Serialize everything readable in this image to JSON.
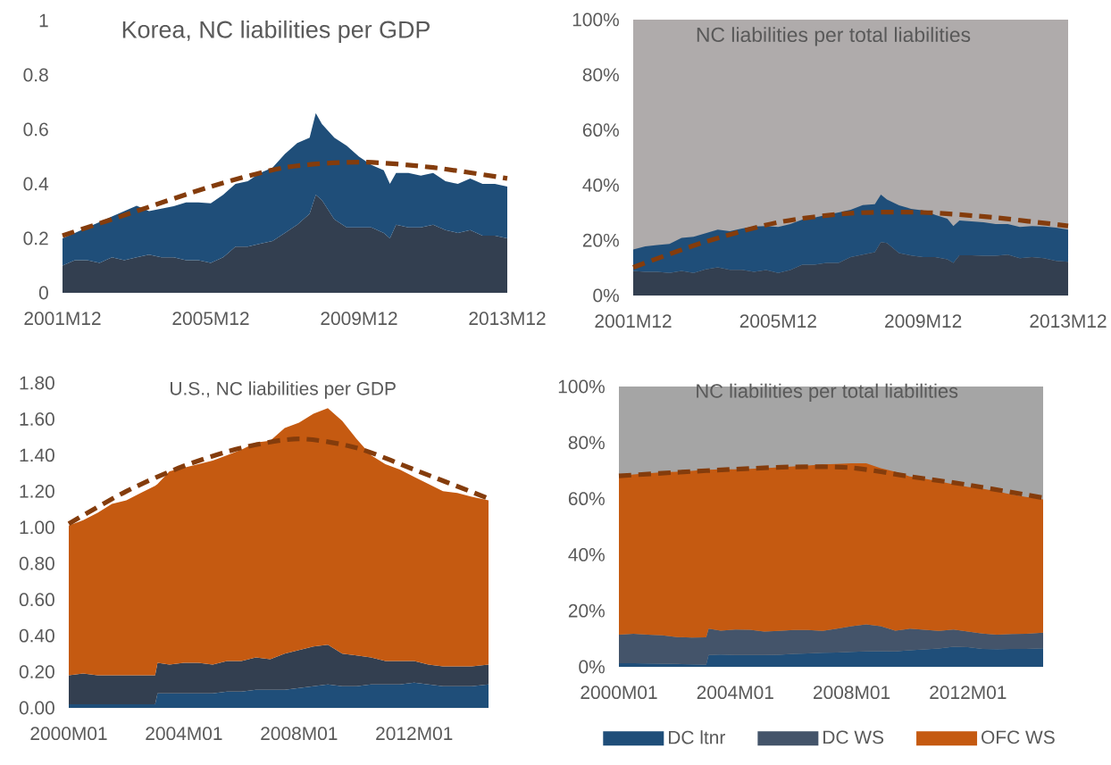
{
  "chart_data": [
    {
      "type": "area",
      "stacked": true,
      "title": "Korea, NC liabilities per GDP",
      "x": [
        "2001-12",
        "2002-04",
        "2002-08",
        "2002-12",
        "2003-04",
        "2003-08",
        "2003-12",
        "2004-04",
        "2004-08",
        "2004-12",
        "2005-04",
        "2005-08",
        "2005-12",
        "2006-04",
        "2006-08",
        "2006-12",
        "2007-04",
        "2007-08",
        "2007-12",
        "2008-04",
        "2008-08",
        "2008-10",
        "2008-12",
        "2009-04",
        "2009-08",
        "2009-12",
        "2010-04",
        "2010-08",
        "2010-10",
        "2010-12",
        "2011-04",
        "2011-08",
        "2011-12",
        "2012-04",
        "2012-08",
        "2012-12",
        "2013-04",
        "2013-08",
        "2013-12"
      ],
      "series": [
        {
          "color": "#333f50",
          "values": [
            0.1,
            0.12,
            0.12,
            0.11,
            0.13,
            0.12,
            0.13,
            0.14,
            0.13,
            0.13,
            0.12,
            0.12,
            0.11,
            0.13,
            0.17,
            0.17,
            0.18,
            0.19,
            0.22,
            0.25,
            0.29,
            0.36,
            0.34,
            0.27,
            0.24,
            0.24,
            0.24,
            0.22,
            0.2,
            0.25,
            0.24,
            0.24,
            0.25,
            0.23,
            0.22,
            0.23,
            0.21,
            0.21,
            0.2
          ]
        },
        {
          "color": "#1f4e79",
          "values": [
            0.1,
            0.1,
            0.12,
            0.15,
            0.15,
            0.18,
            0.19,
            0.16,
            0.179,
            0.188,
            0.212,
            0.212,
            0.219,
            0.23,
            0.23,
            0.24,
            0.26,
            0.27,
            0.29,
            0.3,
            0.28,
            0.3,
            0.28,
            0.3,
            0.3,
            0.26,
            0.23,
            0.23,
            0.2,
            0.19,
            0.2,
            0.19,
            0.19,
            0.18,
            0.18,
            0.19,
            0.19,
            0.19,
            0.19
          ]
        },
        {
          "type": "line",
          "color": "#843c0c",
          "line_style": "dashed",
          "x": [
            "2001-12",
            "2003-12",
            "2005-12",
            "2007-12",
            "2009-12",
            "2011-12",
            "2013-12"
          ],
          "values": [
            0.21,
            0.3,
            0.39,
            0.46,
            0.48,
            0.46,
            0.42
          ]
        }
      ],
      "xlim": [
        "2001-12",
        "2013-12"
      ],
      "xticks": [
        {
          "value": "2001-12",
          "label": "2001M12"
        },
        {
          "value": "2005-12",
          "label": "2005M12"
        },
        {
          "value": "2009-12",
          "label": "2009M12"
        },
        {
          "value": "2013-12",
          "label": "2013M12"
        }
      ],
      "ylim": [
        0,
        1
      ],
      "yticks": [
        0,
        0.2,
        0.4,
        0.6,
        0.8,
        1
      ]
    },
    {
      "type": "area",
      "stacked": true,
      "title": "NC liabilities per total liabilities",
      "x": [
        "2001-12",
        "2002-04",
        "2002-08",
        "2002-12",
        "2003-04",
        "2003-08",
        "2003-12",
        "2004-04",
        "2004-08",
        "2004-12",
        "2005-04",
        "2005-08",
        "2005-12",
        "2006-04",
        "2006-08",
        "2006-12",
        "2007-04",
        "2007-08",
        "2007-12",
        "2008-04",
        "2008-08",
        "2008-10",
        "2008-12",
        "2009-04",
        "2009-08",
        "2009-12",
        "2010-04",
        "2010-08",
        "2010-10",
        "2010-12",
        "2011-04",
        "2011-08",
        "2011-12",
        "2012-04",
        "2012-08",
        "2012-12",
        "2013-04",
        "2013-08",
        "2013-12"
      ],
      "series": [
        {
          "color": "#333f50",
          "values": [
            8.9,
            8.6,
            8.6,
            8.2,
            8.9,
            8.2,
            9.5,
            10.2,
            9.3,
            9.3,
            8.6,
            9.2,
            8.2,
            9.2,
            11.2,
            11.2,
            11.8,
            11.8,
            13.9,
            14.8,
            15.7,
            19.3,
            19.0,
            15.4,
            14.5,
            13.9,
            13.9,
            13.1,
            11.8,
            14.6,
            14.6,
            14.4,
            14.4,
            14.8,
            13.5,
            13.9,
            13.5,
            12.5,
            12.2
          ]
        },
        {
          "color": "#1f4e79",
          "values": [
            7.8,
            9.2,
            9.7,
            10.5,
            12.0,
            13.1,
            13.1,
            13.7,
            14.0,
            15.0,
            16.4,
            16.0,
            16.6,
            16.7,
            16.3,
            17.0,
            17.4,
            18.3,
            17.2,
            18.0,
            17.4,
            17.3,
            15.8,
            17.3,
            16.9,
            16.9,
            15.3,
            14.7,
            13.4,
            12.6,
            12.3,
            12.1,
            11.5,
            11.1,
            11.3,
            11.3,
            11.5,
            12.1,
            11.7
          ]
        },
        {
          "type": "line",
          "color": "#843c0c",
          "line_style": "dashed",
          "x": [
            "2001-12",
            "2003-12",
            "2005-12",
            "2007-12",
            "2009-12",
            "2011-12",
            "2013-12"
          ],
          "values": [
            10.2,
            19.5,
            26.5,
            29.8,
            30.1,
            28.2,
            25.2
          ]
        }
      ],
      "bands": [
        {
          "axis": "y",
          "from": 0,
          "to": 100,
          "color": "#afabab"
        }
      ],
      "xlim": [
        "2001-12",
        "2013-12"
      ],
      "xticks": [
        {
          "value": "2001-12",
          "label": "2001M12"
        },
        {
          "value": "2005-12",
          "label": "2005M12"
        },
        {
          "value": "2009-12",
          "label": "2009M12"
        },
        {
          "value": "2013-12",
          "label": "2013M12"
        }
      ],
      "ylim": [
        0,
        100
      ],
      "yticks": [
        {
          "value": 0,
          "label": "0%"
        },
        {
          "value": 20,
          "label": "20%"
        },
        {
          "value": 40,
          "label": "40%"
        },
        {
          "value": 60,
          "label": "60%"
        },
        {
          "value": 80,
          "label": "80%"
        },
        {
          "value": 100,
          "label": "100%"
        }
      ]
    },
    {
      "type": "area",
      "stacked": true,
      "title": "U.S., NC liabilities per GDP",
      "x": [
        "2000-01",
        "2000-07",
        "2001-01",
        "2001-07",
        "2002-01",
        "2002-07",
        "2003-01",
        "2003-02",
        "2003-07",
        "2004-01",
        "2004-07",
        "2005-01",
        "2005-07",
        "2006-01",
        "2006-07",
        "2007-01",
        "2007-07",
        "2008-01",
        "2008-07",
        "2009-01",
        "2009-07",
        "2010-01",
        "2010-07",
        "2011-01",
        "2011-07",
        "2012-01",
        "2012-07",
        "2013-01",
        "2013-07",
        "2014-01",
        "2014-08"
      ],
      "series": [
        {
          "color": "#1f4e79",
          "values": [
            0.02,
            0.02,
            0.02,
            0.02,
            0.02,
            0.02,
            0.02,
            0.08,
            0.08,
            0.08,
            0.08,
            0.08,
            0.09,
            0.09,
            0.1,
            0.1,
            0.1,
            0.11,
            0.12,
            0.13,
            0.12,
            0.12,
            0.13,
            0.13,
            0.13,
            0.14,
            0.13,
            0.12,
            0.12,
            0.12,
            0.13
          ]
        },
        {
          "color": "#333f50",
          "values": [
            0.16,
            0.17,
            0.16,
            0.16,
            0.16,
            0.16,
            0.16,
            0.17,
            0.16,
            0.17,
            0.17,
            0.16,
            0.17,
            0.17,
            0.18,
            0.17,
            0.2,
            0.21,
            0.22,
            0.22,
            0.18,
            0.17,
            0.15,
            0.13,
            0.13,
            0.12,
            0.11,
            0.11,
            0.11,
            0.11,
            0.11
          ]
        },
        {
          "color": "#c55a11",
          "values": [
            0.83,
            0.85,
            0.9,
            0.95,
            0.97,
            1.01,
            1.05,
            0.99,
            1.07,
            1.08,
            1.1,
            1.13,
            1.14,
            1.17,
            1.19,
            1.21,
            1.25,
            1.26,
            1.29,
            1.31,
            1.29,
            1.2,
            1.12,
            1.09,
            1.06,
            1.02,
            1.0,
            0.97,
            0.96,
            0.94,
            0.91
          ]
        },
        {
          "type": "line",
          "color": "#843c0c",
          "line_style": "dashed",
          "x": [
            "2000-01",
            "2002-01",
            "2004-01",
            "2006-01",
            "2008-01",
            "2010-01",
            "2012-01",
            "2014-08"
          ],
          "values": [
            1.02,
            1.2,
            1.34,
            1.44,
            1.49,
            1.44,
            1.32,
            1.16
          ]
        }
      ],
      "xlim": [
        "2000-01",
        "2014-08"
      ],
      "xticks": [
        {
          "value": "2000-01",
          "label": "2000M01"
        },
        {
          "value": "2004-01",
          "label": "2004M01"
        },
        {
          "value": "2008-01",
          "label": "2008M01"
        },
        {
          "value": "2012-01",
          "label": "2012M01"
        }
      ],
      "ylim": [
        0,
        1.8
      ],
      "yticks": [
        {
          "value": 0,
          "label": "0.00"
        },
        {
          "value": 0.2,
          "label": "0.20"
        },
        {
          "value": 0.4,
          "label": "0.40"
        },
        {
          "value": 0.6,
          "label": "0.60"
        },
        {
          "value": 0.8,
          "label": "0.80"
        },
        {
          "value": 1,
          "label": "1.00"
        },
        {
          "value": 1.2,
          "label": "1.20"
        },
        {
          "value": 1.4,
          "label": "1.40"
        },
        {
          "value": 1.6,
          "label": "1.60"
        },
        {
          "value": 1.8,
          "label": "1.80"
        }
      ]
    },
    {
      "type": "area",
      "stacked": true,
      "title": "NC liabilities per total liabilities",
      "legend": "bottom",
      "x": [
        "2000-01",
        "2000-07",
        "2001-01",
        "2001-07",
        "2002-01",
        "2002-07",
        "2003-01",
        "2003-02",
        "2003-07",
        "2004-01",
        "2004-07",
        "2005-01",
        "2005-07",
        "2006-01",
        "2006-07",
        "2007-01",
        "2007-07",
        "2008-01",
        "2008-07",
        "2009-01",
        "2009-07",
        "2010-01",
        "2010-07",
        "2011-01",
        "2011-07",
        "2012-01",
        "2012-07",
        "2013-01",
        "2013-07",
        "2014-01",
        "2014-08"
      ],
      "series": [
        {
          "name": "DC ltnr",
          "color": "#1f4e79",
          "values": [
            1.3,
            1.3,
            1.2,
            1.1,
            1.0,
            0.9,
            0.8,
            4.2,
            4.4,
            4.2,
            4.2,
            4.2,
            4.3,
            4.6,
            4.8,
            5.0,
            5.1,
            5.3,
            5.5,
            5.6,
            5.5,
            5.9,
            6.2,
            6.5,
            7.2,
            7.0,
            6.4,
            6.3,
            6.4,
            6.4,
            6.6
          ]
        },
        {
          "name": "DC WS",
          "color": "#44546a",
          "values": [
            10.2,
            10.5,
            10.3,
            10.1,
            9.6,
            9.5,
            9.7,
            9.4,
            8.5,
            9.1,
            9.0,
            8.4,
            8.5,
            8.5,
            8.3,
            7.8,
            8.5,
            9.2,
            9.6,
            8.9,
            7.4,
            7.7,
            7.0,
            6.3,
            6.1,
            5.6,
            5.5,
            5.2,
            5.3,
            5.4,
            5.6
          ]
        },
        {
          "name": "OFC WS",
          "color": "#c55a11",
          "values": [
            56.4,
            56.8,
            57.5,
            58.2,
            59.0,
            59.5,
            59.8,
            56.7,
            57.6,
            57.2,
            57.4,
            58.3,
            58.4,
            58.4,
            58.7,
            59.4,
            58.8,
            58.1,
            57.5,
            56.4,
            56.7,
            54.3,
            53.9,
            53.4,
            51.8,
            51.6,
            51.6,
            51.1,
            49.8,
            48.8,
            47.5
          ]
        },
        {
          "type": "line",
          "color": "#843c0c",
          "line_style": "dashed",
          "x": [
            "2000-01",
            "2002-01",
            "2004-01",
            "2006-01",
            "2008-01",
            "2010-01",
            "2012-01",
            "2014-08"
          ],
          "values": [
            68.1,
            69.4,
            70.5,
            71.3,
            71.0,
            67.9,
            64.9,
            60.3
          ]
        }
      ],
      "bands": [
        {
          "axis": "y",
          "from": 0,
          "to": 100,
          "color": "#a5a5a5"
        }
      ],
      "xlim": [
        "2000-01",
        "2014-08"
      ],
      "xticks": [
        {
          "value": "2000-01",
          "label": "2000M01"
        },
        {
          "value": "2004-01",
          "label": "2004M01"
        },
        {
          "value": "2008-01",
          "label": "2008M01"
        },
        {
          "value": "2012-01",
          "label": "2012M01"
        }
      ],
      "ylim": [
        0,
        100
      ],
      "yticks": [
        {
          "value": 0,
          "label": "0%"
        },
        {
          "value": 20,
          "label": "20%"
        },
        {
          "value": 40,
          "label": "40%"
        },
        {
          "value": 60,
          "label": "60%"
        },
        {
          "value": 80,
          "label": "80%"
        },
        {
          "value": 100,
          "label": "100%"
        }
      ]
    }
  ]
}
